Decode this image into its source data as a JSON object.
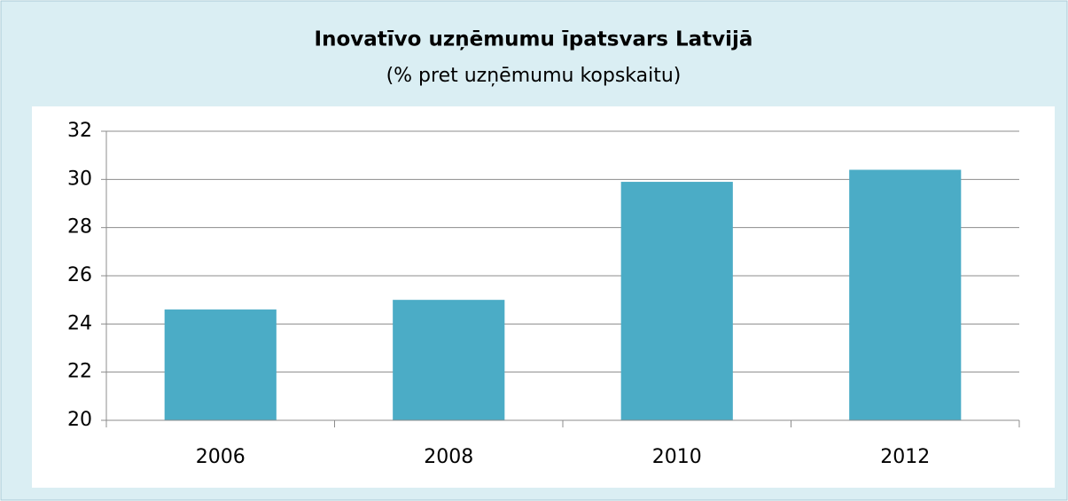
{
  "chart_data": {
    "type": "bar",
    "title": "Inovatīvo uzņēmumu īpatsvars Latvijā",
    "subtitle": "(% pret uzņēmumu kopskaitu)",
    "categories": [
      "2006",
      "2008",
      "2010",
      "2012"
    ],
    "values": [
      24.6,
      25.0,
      29.9,
      30.4
    ],
    "color": "#4bacc6",
    "ylim": [
      20,
      32
    ],
    "yticks": [
      20,
      22,
      24,
      26,
      28,
      30,
      32
    ],
    "grid": true
  }
}
